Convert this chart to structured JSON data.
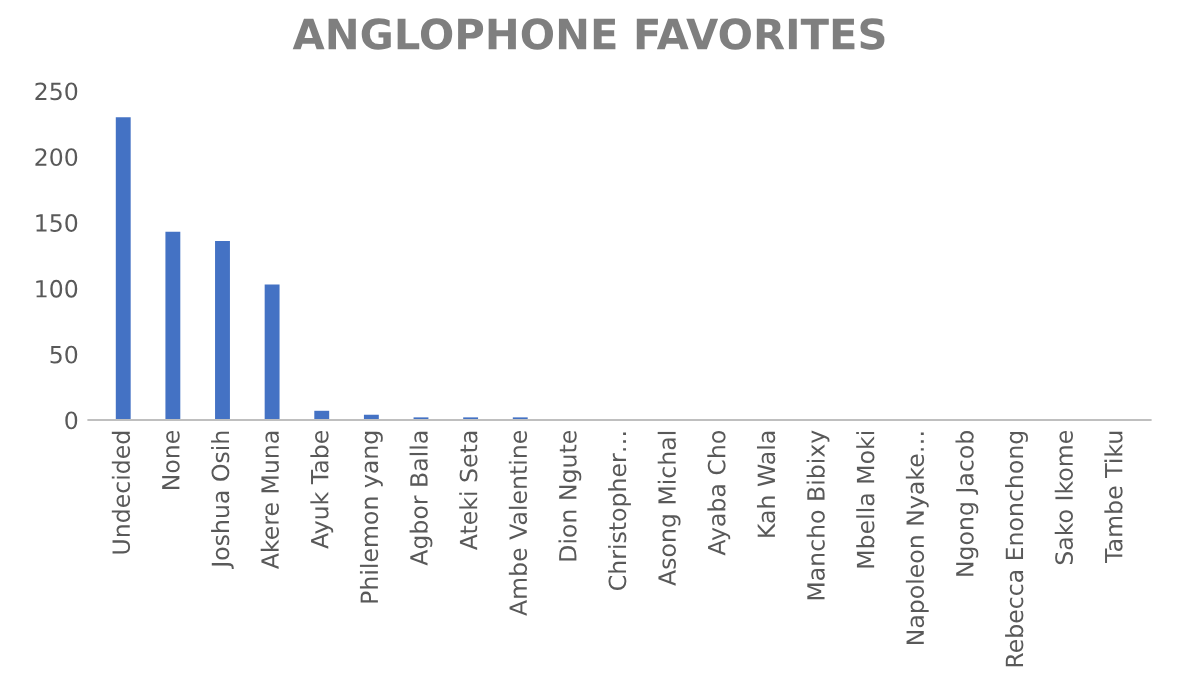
{
  "chart_data": {
    "type": "bar",
    "title": "ANGLOPHONE FAVORITES",
    "categories": [
      "Undecided",
      "None",
      "Joshua Osih",
      "Akere Muna",
      "Ayuk Tabe",
      "Philemon yang",
      "Agbor Balla",
      "Ateki Seta",
      "Ambe Valentine",
      "Dion Ngute",
      "Christopher…",
      "Asong Michal",
      "Ayaba Cho",
      "Kah Wala",
      "Mancho Bibixy",
      "Mbella Moki",
      "Napoleon Nyake…",
      "Ngong Jacob",
      "Rebecca Enonchong",
      "Sako Ikome",
      "Tambe Tiku"
    ],
    "values": [
      230,
      143,
      136,
      103,
      7,
      4,
      2,
      2,
      2,
      0,
      0,
      0,
      0,
      0,
      0,
      0,
      0,
      0,
      0,
      0,
      0
    ],
    "color": "#4472c4",
    "ylim": [
      0,
      250
    ],
    "yticks": [
      0,
      50,
      100,
      150,
      200,
      250
    ],
    "grid": false,
    "legend": false
  }
}
